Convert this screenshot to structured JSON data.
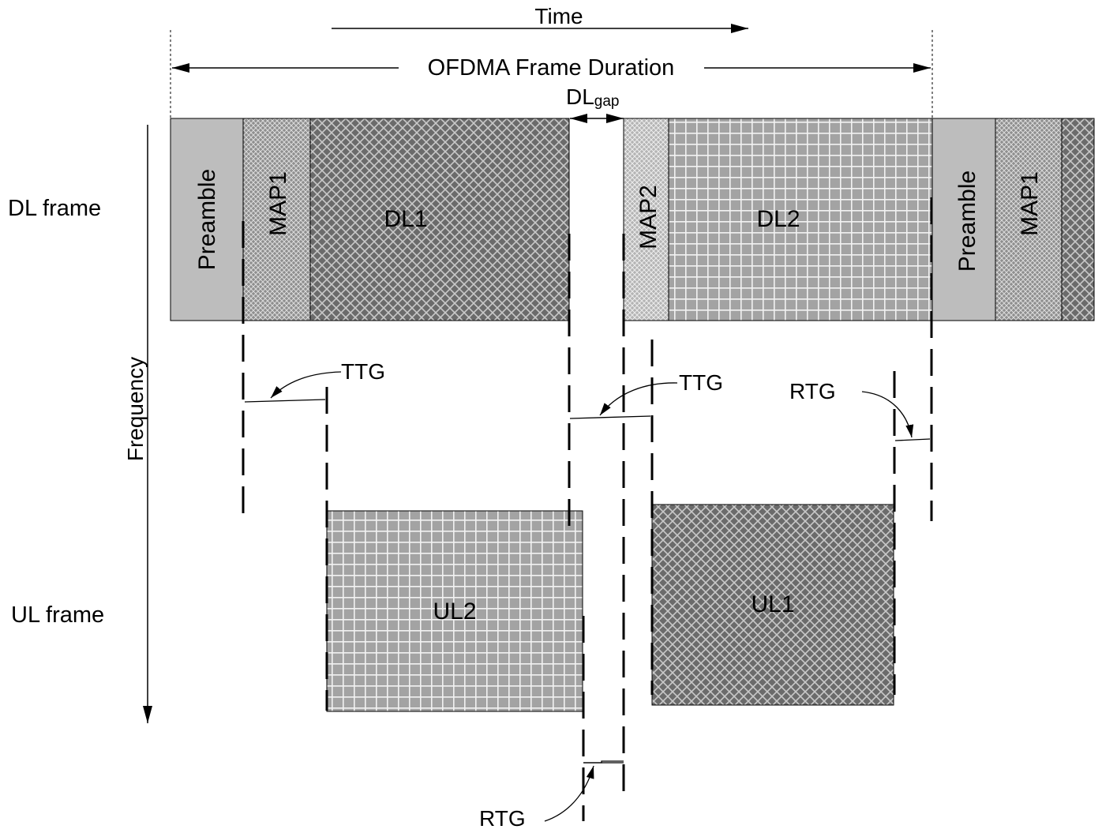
{
  "time_label": "Time",
  "frame_duration_label": "OFDMA Frame Duration",
  "dl_gap_label_main": "DL",
  "dl_gap_label_sub": "gap",
  "frequency_label": "Frequency",
  "dl_frame_label": "DL frame",
  "ul_frame_label": "UL frame",
  "blocks": {
    "preamble_1": "Preamble",
    "map1_1": "MAP1",
    "dl1": "DL1",
    "map2": "MAP2",
    "dl2": "DL2",
    "preamble_2": "Preamble",
    "map1_2": "MAP1",
    "ul2": "UL2",
    "ul1": "UL1"
  },
  "gaps": {
    "ttg_1": "TTG",
    "ttg_2": "TTG",
    "rtg_1": "RTG",
    "rtg_2": "RTG"
  },
  "colors": {
    "preamble": "#bdbdbd",
    "dark_block": "#6e6e6e",
    "light_block": "#a8a8a8",
    "map_block": "#9a9a9a"
  }
}
